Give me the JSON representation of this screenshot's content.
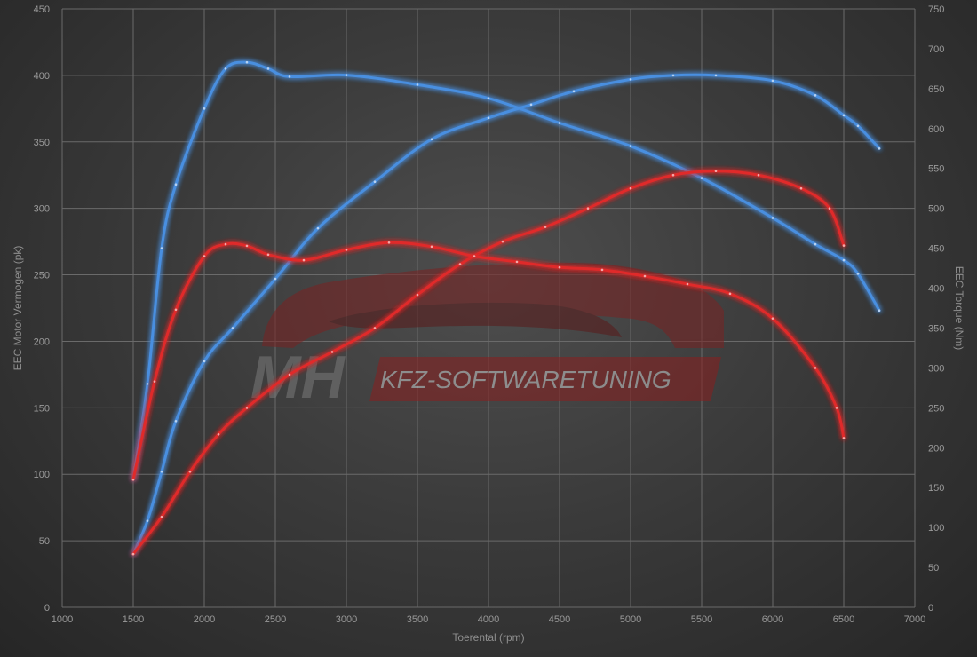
{
  "chart_data": {
    "type": "line",
    "xlabel": "Toerental (rpm)",
    "ylabel_left": "EEC Motor Vermogen (pk)",
    "ylabel_right": "EEC Torque (Nm)",
    "xlim": [
      1000,
      7000
    ],
    "ylim_left": [
      0,
      450
    ],
    "ylim_right": [
      0,
      750
    ],
    "x_ticks": [
      1000,
      1500,
      2000,
      2500,
      3000,
      3500,
      4000,
      4500,
      5000,
      5500,
      6000,
      6500,
      7000
    ],
    "y_ticks_left": [
      0,
      50,
      100,
      150,
      200,
      250,
      300,
      350,
      400,
      450
    ],
    "y_ticks_right": [
      0,
      50,
      100,
      150,
      200,
      250,
      300,
      350,
      400,
      450,
      500,
      550,
      600,
      650,
      700,
      750
    ],
    "grid": true,
    "series": [
      {
        "color": "#4a8fe0",
        "axis": "left",
        "x": [
          1500,
          1600,
          1700,
          1800,
          2000,
          2200,
          2500,
          2800,
          3200,
          3600,
          4000,
          4300,
          4600,
          5000,
          5300,
          5600,
          6000,
          6300,
          6500,
          6600,
          6750
        ],
        "y": [
          40,
          65,
          102,
          140,
          185,
          210,
          247,
          285,
          320,
          352,
          368,
          378,
          388,
          397,
          400,
          400,
          396,
          385,
          370,
          362,
          345
        ]
      },
      {
        "color": "#4a8fe0",
        "axis": "right",
        "x": [
          1500,
          1600,
          1700,
          1800,
          2000,
          2150,
          2300,
          2450,
          2600,
          3000,
          3500,
          4000,
          4500,
          5000,
          5500,
          6000,
          6300,
          6500,
          6600,
          6750
        ],
        "y": [
          160,
          280,
          450,
          530,
          625,
          675,
          683,
          675,
          665,
          667,
          655,
          638,
          607,
          578,
          538,
          488,
          455,
          435,
          418,
          372
        ]
      },
      {
        "color": "#e02a2a",
        "axis": "left",
        "x": [
          1500,
          1700,
          1900,
          2100,
          2300,
          2600,
          2900,
          3200,
          3500,
          3800,
          4100,
          4400,
          4700,
          5000,
          5300,
          5600,
          5900,
          6200,
          6400,
          6500
        ],
        "y": [
          40,
          68,
          102,
          130,
          150,
          175,
          192,
          210,
          235,
          258,
          275,
          286,
          300,
          315,
          325,
          328,
          325,
          315,
          300,
          272
        ]
      },
      {
        "color": "#e02a2a",
        "axis": "right",
        "x": [
          1500,
          1650,
          1800,
          2000,
          2150,
          2300,
          2450,
          2700,
          3000,
          3300,
          3600,
          3900,
          4200,
          4500,
          4800,
          5100,
          5400,
          5700,
          6000,
          6300,
          6450,
          6500
        ],
        "y": [
          160,
          283,
          373,
          440,
          455,
          453,
          442,
          435,
          448,
          457,
          452,
          440,
          433,
          426,
          423,
          415,
          405,
          393,
          362,
          300,
          250,
          212
        ]
      }
    ]
  }
}
